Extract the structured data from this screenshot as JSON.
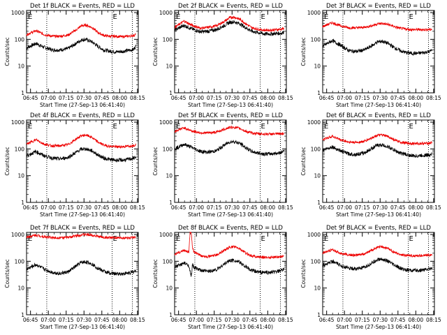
{
  "figure": {
    "start_time_label": "Start Time (27-Sep-13 06:41:40)",
    "ylabel": "Counts/sec",
    "colors": {
      "events": "#000000",
      "lld": "#ee0000",
      "axis": "#000000",
      "marker": "#000000"
    }
  },
  "chart_data": [
    {
      "type": "line",
      "title": "Det 1f BLACK = Events, RED = LLD",
      "xlabel": "Start Time (27-Sep-13 06:41:40)",
      "ylabel": "Counts/sec",
      "x_ticks": [
        "06:45",
        "07:00",
        "07:15",
        "07:30",
        "07:45",
        "08:00",
        "08:15"
      ],
      "y_ticks": [
        "1",
        "10",
        "100",
        "1000"
      ],
      "yscale": "log",
      "ylim": [
        1,
        1200
      ],
      "xlim_minutes": [
        0,
        94
      ],
      "e_marker_minute": 72,
      "dotted_markers_minutes": [
        17,
        72,
        89
      ],
      "series": [
        {
          "name": "Events",
          "x": [
            0,
            8,
            15,
            22,
            28,
            35,
            42,
            46,
            50,
            55,
            60,
            65,
            70,
            75,
            80,
            85,
            90,
            92
          ],
          "y": [
            48,
            70,
            50,
            40,
            40,
            45,
            72,
            95,
            100,
            80,
            55,
            40,
            36,
            34,
            35,
            38,
            42,
            55
          ]
        },
        {
          "name": "LLD",
          "x": [
            0,
            8,
            15,
            22,
            28,
            35,
            42,
            46,
            50,
            55,
            60,
            65,
            70,
            75,
            80,
            85,
            90,
            92
          ],
          "y": [
            150,
            210,
            150,
            130,
            130,
            145,
            230,
            320,
            340,
            280,
            180,
            140,
            130,
            130,
            125,
            130,
            140,
            155
          ]
        }
      ]
    },
    {
      "type": "line",
      "title": "Det 2f BLACK = Events, RED = LLD",
      "xlabel": "Start Time (27-Sep-13 06:41:40)",
      "ylabel": "Counts/sec",
      "x_ticks": [
        "06:45",
        "07:00",
        "07:15",
        "07:30",
        "07:45",
        "08:00",
        "08:15"
      ],
      "y_ticks": [
        "1",
        "10",
        "100",
        "1000"
      ],
      "yscale": "log",
      "ylim": [
        1,
        1200
      ],
      "xlim_minutes": [
        0,
        94
      ],
      "e_marker_minute": 72,
      "dotted_markers_minutes": [
        17,
        72,
        89
      ],
      "series": [
        {
          "name": "Events",
          "x": [
            0,
            8,
            15,
            22,
            28,
            35,
            42,
            46,
            50,
            55,
            60,
            65,
            70,
            75,
            80,
            85,
            90,
            92
          ],
          "y": [
            220,
            330,
            240,
            190,
            200,
            230,
            330,
            430,
            450,
            380,
            270,
            200,
            180,
            160,
            160,
            165,
            170,
            190
          ]
        },
        {
          "name": "LLD",
          "x": [
            0,
            8,
            15,
            22,
            28,
            35,
            42,
            46,
            50,
            55,
            60,
            65,
            70,
            75,
            80,
            85,
            90,
            92
          ],
          "y": [
            280,
            480,
            330,
            260,
            280,
            320,
            470,
            640,
            680,
            560,
            380,
            270,
            240,
            220,
            220,
            230,
            240,
            260
          ]
        }
      ]
    },
    {
      "type": "line",
      "title": "Det 3f BLACK = Events, RED = LLD",
      "xlabel": "Start Time (27-Sep-13 06:41:40)",
      "ylabel": "Counts/sec",
      "x_ticks": [
        "06:45",
        "07:00",
        "07:15",
        "07:30",
        "07:45",
        "08:00",
        "08:15"
      ],
      "y_ticks": [
        "1",
        "10",
        "100",
        "1000"
      ],
      "yscale": "log",
      "ylim": [
        1,
        1200
      ],
      "xlim_minutes": [
        0,
        94
      ],
      "e_marker_minute": 72,
      "dotted_markers_minutes": [
        17,
        72,
        89
      ],
      "series": [
        {
          "name": "Events",
          "x": [
            0,
            8,
            15,
            22,
            28,
            35,
            42,
            46,
            50,
            55,
            60,
            65,
            70,
            75,
            80,
            85,
            90,
            92
          ],
          "y": [
            55,
            90,
            60,
            38,
            35,
            40,
            60,
            80,
            85,
            70,
            50,
            38,
            32,
            30,
            30,
            32,
            35,
            40
          ]
        },
        {
          "name": "LLD",
          "x": [
            0,
            8,
            15,
            22,
            28,
            35,
            42,
            46,
            50,
            55,
            60,
            65,
            70,
            75,
            80,
            85,
            90,
            92
          ],
          "y": [
            300,
            420,
            320,
            270,
            270,
            280,
            330,
            380,
            390,
            360,
            300,
            260,
            240,
            230,
            230,
            230,
            230,
            240
          ]
        }
      ]
    },
    {
      "type": "line",
      "title": "Det 4f BLACK = Events, RED = LLD",
      "xlabel": "Start Time (27-Sep-13 06:41:40)",
      "ylabel": "Counts/sec",
      "x_ticks": [
        "06:45",
        "07:00",
        "07:15",
        "07:30",
        "07:45",
        "08:00",
        "08:15"
      ],
      "y_ticks": [
        "1",
        "10",
        "100",
        "1000"
      ],
      "yscale": "log",
      "ylim": [
        1,
        1200
      ],
      "xlim_minutes": [
        0,
        94
      ],
      "e_marker_minute": 72,
      "dotted_markers_minutes": [
        17,
        72,
        89
      ],
      "series": [
        {
          "name": "Events",
          "x": [
            0,
            8,
            15,
            22,
            28,
            35,
            42,
            46,
            50,
            55,
            60,
            65,
            70,
            75,
            80,
            85,
            90,
            92
          ],
          "y": [
            55,
            80,
            55,
            45,
            42,
            48,
            75,
            98,
            100,
            85,
            60,
            45,
            40,
            38,
            38,
            40,
            45,
            50
          ]
        },
        {
          "name": "LLD",
          "x": [
            0,
            8,
            15,
            22,
            28,
            35,
            42,
            46,
            50,
            55,
            60,
            65,
            70,
            75,
            80,
            85,
            90,
            92
          ],
          "y": [
            150,
            220,
            150,
            130,
            130,
            145,
            240,
            310,
            330,
            270,
            180,
            140,
            125,
            120,
            120,
            125,
            135,
            145
          ]
        }
      ]
    },
    {
      "type": "line",
      "title": "Det 5f BLACK = Events, RED = LLD",
      "xlabel": "Start Time (27-Sep-13 06:41:40)",
      "ylabel": "Counts/sec",
      "x_ticks": [
        "06:45",
        "07:00",
        "07:15",
        "07:30",
        "07:45",
        "08:00",
        "08:15"
      ],
      "y_ticks": [
        "1",
        "10",
        "100",
        "1000"
      ],
      "yscale": "log",
      "ylim": [
        1,
        1200
      ],
      "xlim_minutes": [
        0,
        94
      ],
      "e_marker_minute": 72,
      "dotted_markers_minutes": [
        17,
        72,
        89
      ],
      "series": [
        {
          "name": "Events",
          "x": [
            0,
            8,
            15,
            22,
            28,
            35,
            42,
            46,
            50,
            55,
            60,
            65,
            70,
            75,
            80,
            85,
            90,
            92
          ],
          "y": [
            100,
            150,
            110,
            80,
            75,
            85,
            140,
            180,
            190,
            160,
            110,
            80,
            70,
            65,
            65,
            68,
            75,
            85
          ]
        },
        {
          "name": "LLD",
          "x": [
            0,
            8,
            15,
            22,
            28,
            35,
            42,
            46,
            50,
            55,
            60,
            65,
            70,
            75,
            80,
            85,
            90,
            92
          ],
          "y": [
            450,
            620,
            460,
            400,
            400,
            420,
            550,
            630,
            640,
            580,
            450,
            390,
            370,
            360,
            360,
            360,
            370,
            390
          ]
        }
      ]
    },
    {
      "type": "line",
      "title": "Det 6f BLACK = Events, RED = LLD",
      "xlabel": "Start Time (27-Sep-13 06:41:40)",
      "ylabel": "Counts/sec",
      "x_ticks": [
        "06:45",
        "07:00",
        "07:15",
        "07:30",
        "07:45",
        "08:00",
        "08:15"
      ],
      "y_ticks": [
        "1",
        "10",
        "100",
        "1000"
      ],
      "yscale": "log",
      "ylim": [
        1,
        1200
      ],
      "xlim_minutes": [
        0,
        94
      ],
      "e_marker_minute": 72,
      "dotted_markers_minutes": [
        17,
        72,
        89
      ],
      "series": [
        {
          "name": "Events",
          "x": [
            0,
            8,
            15,
            22,
            28,
            35,
            42,
            46,
            50,
            55,
            60,
            65,
            70,
            75,
            80,
            85,
            90,
            92
          ],
          "y": [
            90,
            120,
            85,
            65,
            62,
            70,
            110,
            135,
            140,
            120,
            90,
            70,
            62,
            55,
            55,
            58,
            60,
            68
          ]
        },
        {
          "name": "LLD",
          "x": [
            0,
            8,
            15,
            22,
            28,
            35,
            42,
            46,
            50,
            55,
            60,
            65,
            70,
            75,
            80,
            85,
            90,
            92
          ],
          "y": [
            220,
            300,
            220,
            180,
            175,
            190,
            270,
            320,
            330,
            290,
            220,
            180,
            165,
            160,
            158,
            160,
            165,
            175
          ]
        }
      ]
    },
    {
      "type": "line",
      "title": "Det 7f BLACK = Events, RED = LLD",
      "xlabel": "Start Time (27-Sep-13 06:41:40)",
      "ylabel": "Counts/sec",
      "x_ticks": [
        "06:45",
        "07:00",
        "07:15",
        "07:30",
        "07:45",
        "08:00",
        "08:15"
      ],
      "y_ticks": [
        "1",
        "10",
        "100",
        "1000"
      ],
      "yscale": "log",
      "ylim": [
        1,
        1200
      ],
      "xlim_minutes": [
        0,
        94
      ],
      "e_marker_minute": 72,
      "dotted_markers_minutes": [
        17,
        72,
        89
      ],
      "series": [
        {
          "name": "Events",
          "x": [
            0,
            8,
            15,
            22,
            28,
            35,
            42,
            46,
            50,
            55,
            60,
            65,
            70,
            75,
            80,
            85,
            90,
            92
          ],
          "y": [
            50,
            75,
            50,
            38,
            35,
            40,
            68,
            90,
            95,
            80,
            55,
            42,
            36,
            34,
            34,
            36,
            40,
            45
          ]
        },
        {
          "name": "LLD",
          "x": [
            0,
            8,
            15,
            22,
            28,
            35,
            42,
            46,
            50,
            55,
            60,
            65,
            70,
            75,
            80,
            85,
            90,
            92
          ],
          "y": [
            800,
            950,
            820,
            760,
            760,
            780,
            900,
            980,
            1000,
            950,
            850,
            780,
            760,
            750,
            750,
            750,
            760,
            780
          ]
        }
      ]
    },
    {
      "type": "line",
      "title": "Det 8f BLACK = Events, RED = LLD",
      "xlabel": "Start Time (27-Sep-13 06:41:40)",
      "ylabel": "Counts/sec",
      "x_ticks": [
        "06:45",
        "07:00",
        "07:15",
        "07:30",
        "07:45",
        "08:00",
        "08:15"
      ],
      "y_ticks": [
        "1",
        "10",
        "100",
        "1000"
      ],
      "yscale": "log",
      "ylim": [
        1,
        1200
      ],
      "xlim_minutes": [
        0,
        94
      ],
      "e_marker_minute": 72,
      "dotted_markers_minutes": [
        17,
        72,
        89
      ],
      "series": [
        {
          "name": "Events",
          "x": [
            0,
            8,
            12,
            13,
            14,
            15,
            16,
            22,
            28,
            35,
            42,
            46,
            50,
            55,
            60,
            65,
            70,
            75,
            80,
            85,
            90,
            92
          ],
          "y": [
            60,
            85,
            70,
            40,
            25,
            80,
            60,
            45,
            42,
            48,
            80,
            105,
            110,
            90,
            62,
            45,
            40,
            38,
            38,
            40,
            45,
            50
          ]
        },
        {
          "name": "LLD",
          "x": [
            0,
            8,
            12,
            13,
            14,
            15,
            16,
            22,
            28,
            35,
            42,
            46,
            50,
            55,
            60,
            65,
            70,
            75,
            80,
            85,
            90,
            92
          ],
          "y": [
            180,
            260,
            220,
            1200,
            1200,
            350,
            230,
            160,
            150,
            170,
            260,
            330,
            350,
            290,
            200,
            160,
            145,
            140,
            140,
            145,
            150,
            160
          ]
        }
      ]
    },
    {
      "type": "line",
      "title": "Det 9f BLACK = Events, RED = LLD",
      "xlabel": "Start Time (27-Sep-13 06:41:40)",
      "ylabel": "Counts/sec",
      "x_ticks": [
        "06:45",
        "07:00",
        "07:15",
        "07:30",
        "07:45",
        "08:00",
        "08:15"
      ],
      "y_ticks": [
        "1",
        "10",
        "100",
        "1000"
      ],
      "yscale": "log",
      "ylim": [
        1,
        1200
      ],
      "xlim_minutes": [
        0,
        94
      ],
      "e_marker_minute": 72,
      "dotted_markers_minutes": [
        17,
        72,
        89
      ],
      "series": [
        {
          "name": "Events",
          "x": [
            0,
            8,
            15,
            22,
            28,
            35,
            42,
            46,
            50,
            55,
            60,
            65,
            70,
            75,
            80,
            85,
            90,
            92
          ],
          "y": [
            70,
            100,
            70,
            55,
            52,
            58,
            90,
            115,
            120,
            100,
            72,
            55,
            48,
            45,
            45,
            48,
            52,
            58
          ]
        },
        {
          "name": "LLD",
          "x": [
            0,
            8,
            15,
            22,
            28,
            35,
            42,
            46,
            50,
            55,
            60,
            65,
            70,
            75,
            80,
            85,
            90,
            92
          ],
          "y": [
            200,
            270,
            200,
            170,
            170,
            185,
            270,
            330,
            350,
            300,
            220,
            180,
            165,
            160,
            160,
            165,
            170,
            180
          ]
        }
      ]
    }
  ]
}
